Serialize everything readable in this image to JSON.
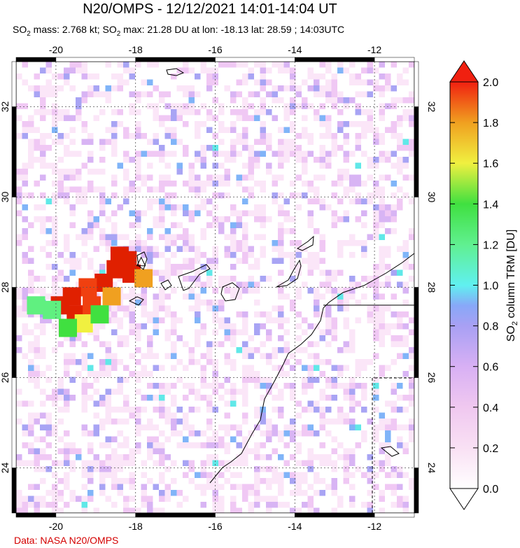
{
  "title": "N20/OMPS - 12/12/2021 14:01-14:04 UT",
  "subtitle": {
    "prefix": "SO",
    "sub": "2",
    "mass_text": " mass: 2.768 kt; SO",
    "sub2": "2",
    "rest_text": " max: 21.28 DU at lon: -18.13 lat: 28.59 ; 14:03UTC"
  },
  "footer": "Data: NASA N20/OMPS",
  "map": {
    "lon_range": [
      -21.0,
      -11.0
    ],
    "lat_range": [
      23.0,
      33.0
    ],
    "lon_ticks": [
      -20,
      -18,
      -16,
      -14,
      -12
    ],
    "lat_ticks": [
      24,
      26,
      28,
      30,
      32
    ],
    "lon_tick_labels": [
      "-20",
      "-18",
      "-16",
      "-14",
      "-12"
    ],
    "lat_tick_labels": [
      "24",
      "26",
      "28",
      "30",
      "32"
    ],
    "volcano": {
      "lon": -17.86,
      "lat": 28.57
    },
    "max_point": {
      "lon": -18.13,
      "lat": 28.59
    },
    "plume": [
      {
        "lon": -18.4,
        "lat": 28.7,
        "du": 2.0
      },
      {
        "lon": -18.2,
        "lat": 28.6,
        "du": 2.0
      },
      {
        "lon": -18.5,
        "lat": 28.4,
        "du": 2.0
      },
      {
        "lon": -18.1,
        "lat": 28.3,
        "du": 2.0
      },
      {
        "lon": -18.8,
        "lat": 28.1,
        "du": 2.0
      },
      {
        "lon": -19.2,
        "lat": 28.0,
        "du": 1.9
      },
      {
        "lon": -19.6,
        "lat": 27.8,
        "du": 2.0
      },
      {
        "lon": -19.9,
        "lat": 27.6,
        "du": 2.0
      },
      {
        "lon": -19.5,
        "lat": 27.4,
        "du": 2.0
      },
      {
        "lon": -19.1,
        "lat": 27.6,
        "du": 1.8
      },
      {
        "lon": -18.6,
        "lat": 27.8,
        "du": 1.6
      },
      {
        "lon": -19.3,
        "lat": 27.2,
        "du": 1.5
      },
      {
        "lon": -20.1,
        "lat": 27.5,
        "du": 1.1
      },
      {
        "lon": -19.7,
        "lat": 27.1,
        "du": 1.3
      },
      {
        "lon": -18.9,
        "lat": 27.4,
        "du": 1.2
      },
      {
        "lon": -20.5,
        "lat": 27.6,
        "du": 1.0
      },
      {
        "lon": -17.8,
        "lat": 28.2,
        "du": 1.7
      }
    ]
  },
  "colorbar": {
    "label_prefix": "SO",
    "label_sub": "2",
    "label_rest": " column TRM [DU]",
    "min": 0.0,
    "max": 2.0,
    "ticks": [
      0.0,
      0.2,
      0.4,
      0.6,
      0.8,
      1.0,
      1.2,
      1.4,
      1.6,
      1.8,
      2.0
    ],
    "tick_labels": [
      "0.0",
      "0.2",
      "0.4",
      "0.6",
      "0.8",
      "1.0",
      "1.2",
      "1.4",
      "1.6",
      "1.8",
      "2.0"
    ],
    "colors": [
      "#ffffff",
      "#f5d0f0",
      "#e0b0f0",
      "#a8a0f0",
      "#7ea8f8",
      "#60f0f0",
      "#60f080",
      "#40e040",
      "#f0f040",
      "#f0a020",
      "#f04010",
      "#e02000"
    ]
  }
}
